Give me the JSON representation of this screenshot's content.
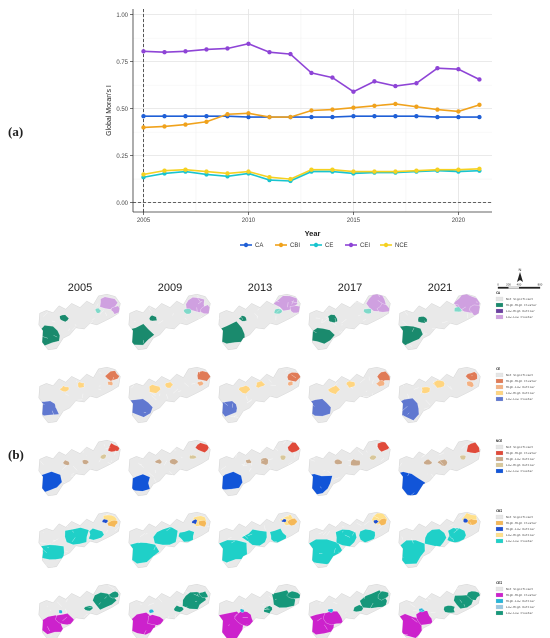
{
  "panel_a_label": "(a)",
  "panel_b_label": "(b)",
  "chart_data": {
    "type": "line",
    "xlabel": "Year",
    "ylabel": "Global Moran's I",
    "xlim": [
      2004.5,
      2021.6
    ],
    "ylim": [
      -0.05,
      1.03
    ],
    "xticks": [
      2005,
      2010,
      2015,
      2020
    ],
    "yticks": [
      0.0,
      0.25,
      0.5,
      0.75,
      1.0
    ],
    "ytick_labels": [
      "0.00",
      "0.25",
      "0.50",
      "0.75",
      "1.00"
    ],
    "hline_y": 0.0,
    "vline_x": 2005,
    "grid": true,
    "legend_position": "bottom",
    "x": [
      2005,
      2006,
      2007,
      2008,
      2009,
      2010,
      2011,
      2012,
      2013,
      2014,
      2015,
      2016,
      2017,
      2018,
      2019,
      2020,
      2021
    ],
    "series": [
      {
        "name": "CA",
        "color": "#1f5fd6",
        "values": [
          0.46,
          0.46,
          0.46,
          0.46,
          0.46,
          0.455,
          0.455,
          0.455,
          0.455,
          0.455,
          0.46,
          0.46,
          0.46,
          0.46,
          0.455,
          0.455,
          0.455
        ]
      },
      {
        "name": "CBI",
        "color": "#f0a21c",
        "values": [
          0.4,
          0.405,
          0.415,
          0.43,
          0.47,
          0.475,
          0.455,
          0.455,
          0.49,
          0.495,
          0.505,
          0.515,
          0.525,
          0.51,
          0.495,
          0.485,
          0.52
        ]
      },
      {
        "name": "CE",
        "color": "#18c4cf",
        "values": [
          0.135,
          0.155,
          0.165,
          0.15,
          0.14,
          0.155,
          0.12,
          0.115,
          0.165,
          0.165,
          0.155,
          0.16,
          0.16,
          0.165,
          0.17,
          0.165,
          0.17
        ]
      },
      {
        "name": "CEI",
        "color": "#8e44d6",
        "values": [
          0.805,
          0.8,
          0.805,
          0.815,
          0.82,
          0.845,
          0.8,
          0.79,
          0.69,
          0.665,
          0.59,
          0.645,
          0.62,
          0.635,
          0.715,
          0.71,
          0.655
        ]
      },
      {
        "name": "NCE",
        "color": "#f5d121",
        "values": [
          0.15,
          0.17,
          0.175,
          0.165,
          0.155,
          0.165,
          0.135,
          0.125,
          0.175,
          0.175,
          0.165,
          0.165,
          0.165,
          0.17,
          0.175,
          0.175,
          0.18
        ]
      }
    ]
  },
  "maps": {
    "years": [
      "2005",
      "2009",
      "2013",
      "2017",
      "2021"
    ],
    "compass_letter": "N",
    "scale_labels": [
      "0",
      "200",
      "400",
      "800"
    ],
    "rows": [
      {
        "id": "CA",
        "title": "CA",
        "legend": [
          "Not Significant",
          "High-High Cluster",
          "Low-High Outlier",
          "Low-Low Cluster"
        ],
        "colors": {
          "hh": "#1a8a6d",
          "hl": "#7fd9c9",
          "lh": "#6b3fa0",
          "ll": "#cfa0e0"
        }
      },
      {
        "id": "CE",
        "title": "CE",
        "legend": [
          "Not Significant",
          "High-High Cluster",
          "High-Low Outlier",
          "Low-High Outlier",
          "Low-Low Cluster"
        ],
        "colors": {
          "hh": "#e07b57",
          "hl": "#f4b183",
          "lh": "#ffd580",
          "ll": "#6078d0"
        }
      },
      {
        "id": "NCE",
        "title": "NCE",
        "legend": [
          "Not Significant",
          "High-High Cluster",
          "High-Low Outlier",
          "Low-High Outlier",
          "Low-Low Cluster"
        ],
        "colors": {
          "hh": "#e04a3a",
          "hl": "#c9a98a",
          "lh": "#d8c79a",
          "ll": "#1255d8"
        }
      },
      {
        "id": "CBI",
        "title": "CBI",
        "legend": [
          "Not Significant",
          "High-High Cluster",
          "High-Low Outlier",
          "Low-High Outlier",
          "Low-Low Cluster"
        ],
        "colors": {
          "hh": "#f5b858",
          "hl": "#1f4fd0",
          "lh": "#ffe08a",
          "ll": "#1fd0c8"
        }
      },
      {
        "id": "CEI",
        "title": "CEI",
        "legend": [
          "Not Significant",
          "High-High Cluster",
          "High-Low Outlier",
          "Low-High Outlier",
          "Low-Low Cluster"
        ],
        "colors": {
          "hh": "#cc22cc",
          "hl": "#27b5d8",
          "lh": "#9ac7e0",
          "ll": "#16977a"
        }
      }
    ]
  }
}
